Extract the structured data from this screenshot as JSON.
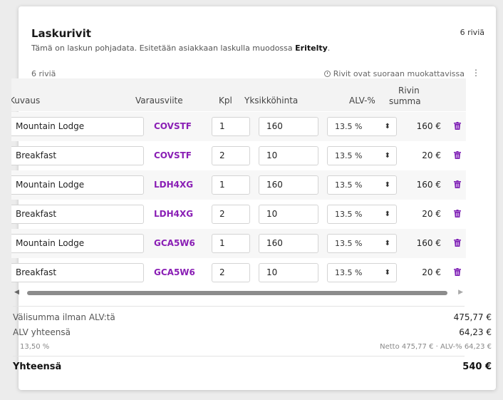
{
  "section": {
    "title": "Laskurivit",
    "row_count_badge": "6 riviä",
    "subtitle_prefix": "Tämä on laskun pohjadata. Esitetään asiakkaan laskulla muodossa ",
    "subtitle_mode": "Eritelty",
    "subtitle_suffix": ".",
    "row_count": "6 riviä",
    "editable_note": "Rivit ovat suoraan muokattavissa",
    "menu_glyph": "⋮"
  },
  "table": {
    "columns": {
      "description": "Kuvaus",
      "booking_ref": "Varausviite",
      "qty": "Kpl",
      "unit_price": "Yksikköhinta",
      "vat": "ALV-%",
      "row_total_line1": "Rivin",
      "row_total_line2": "summa"
    },
    "rows": [
      {
        "description": "Mountain Lodge",
        "booking_ref": "COVSTF",
        "qty": "1",
        "unit_price": "160",
        "vat": "13.5 %",
        "row_total": "160 €"
      },
      {
        "description": "Breakfast",
        "booking_ref": "COVSTF",
        "qty": "2",
        "unit_price": "10",
        "vat": "13.5 %",
        "row_total": "20 €"
      },
      {
        "description": "Mountain Lodge",
        "booking_ref": "LDH4XG",
        "qty": "1",
        "unit_price": "160",
        "vat": "13.5 %",
        "row_total": "160 €"
      },
      {
        "description": "Breakfast",
        "booking_ref": "LDH4XG",
        "qty": "2",
        "unit_price": "10",
        "vat": "13.5 %",
        "row_total": "20 €"
      },
      {
        "description": "Mountain Lodge",
        "booking_ref": "GCA5W6",
        "qty": "1",
        "unit_price": "160",
        "vat": "13.5 %",
        "row_total": "160 €"
      },
      {
        "description": "Breakfast",
        "booking_ref": "GCA5W6",
        "qty": "2",
        "unit_price": "10",
        "vat": "13.5 %",
        "row_total": "20 €"
      }
    ]
  },
  "totals": {
    "subtotal_label": "Välisumma ilman ALV:tä",
    "subtotal_value": "475,77 €",
    "vat_label": "ALV yhteensä",
    "vat_value": "64,23 €",
    "vat_rate_label": "13,50 %",
    "vat_rate_detail": "Netto 475,77 € · ALV-% 64,23 €",
    "grand_label": "Yhteensä",
    "grand_value": "540 €"
  },
  "colors": {
    "accent": "#8a1fb5",
    "trash_icon": "#7e1fb5"
  },
  "icons": {
    "editable_note": "clock-icon",
    "row_delete": "trash-icon",
    "vat_select": "chevron-up-down-icon",
    "menu": "kebab-menu-icon"
  }
}
